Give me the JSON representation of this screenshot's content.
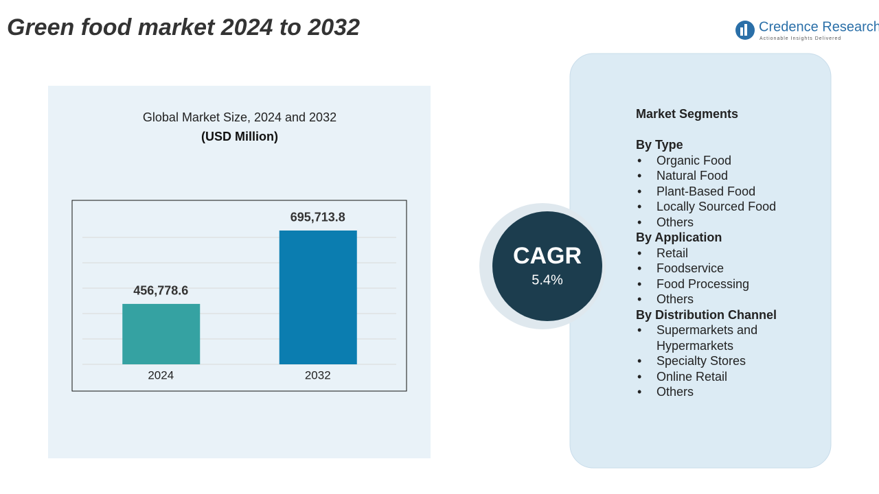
{
  "header": {
    "title": "Green food market 2024 to 2032",
    "logo_name": "Credence Research",
    "logo_tagline": "Actionable Insights Delivered"
  },
  "chart_data": {
    "type": "bar",
    "title": "Global Market Size, 2024 and 2032",
    "subtitle": "(USD Million)",
    "categories": [
      "2024",
      "2032"
    ],
    "values": [
      456778.6,
      695713.8
    ],
    "value_labels": [
      "456,778.6",
      "695,713.8"
    ],
    "colors": [
      "#35a2a2",
      "#0b7db0"
    ],
    "ylim": [
      260000,
      756000
    ],
    "grid": true
  },
  "cagr": {
    "label": "CAGR",
    "value": "5.4%"
  },
  "segments": {
    "title": "Market Segments",
    "groups": [
      {
        "name": "By Type",
        "items": [
          "Organic Food",
          "Natural Food",
          "Plant-Based Food",
          "Locally Sourced Food",
          "Others"
        ]
      },
      {
        "name": "By Application",
        "items": [
          "Retail",
          "Foodservice",
          "Food Processing",
          "Others"
        ]
      },
      {
        "name": "By Distribution Channel",
        "items": [
          "Supermarkets and Hypermarkets",
          "Specialty Stores",
          "Online Retail",
          "Others"
        ]
      }
    ]
  }
}
